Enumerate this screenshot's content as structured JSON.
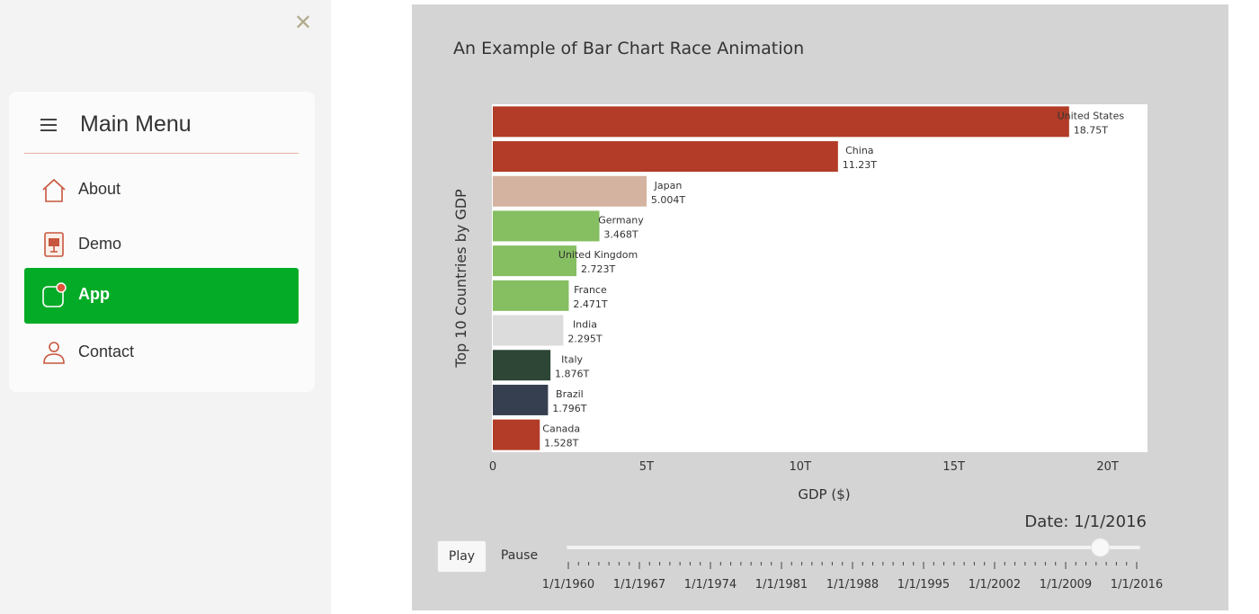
{
  "sidebar": {
    "close_icon": "close-icon",
    "title": "Main Menu",
    "items": [
      {
        "label": "About",
        "icon": "home-icon",
        "active": false
      },
      {
        "label": "Demo",
        "icon": "presentation-icon",
        "active": false
      },
      {
        "label": "App",
        "icon": "app-icon",
        "active": true
      },
      {
        "label": "Contact",
        "icon": "user-icon",
        "active": false
      }
    ]
  },
  "colors": {
    "accent_green": "#04ab27",
    "panel_bg": "#d3d4d3"
  },
  "main": {
    "title": "An Example of Bar Chart Race Animation",
    "controls": {
      "play_label": "Play",
      "pause_label": "Pause",
      "current_date": "Date: 1/1/2016",
      "slider_position": 0.933,
      "slider_ticks": [
        "1/1/1960",
        "1/1/1967",
        "1/1/1974",
        "1/1/1981",
        "1/1/1988",
        "1/1/1995",
        "1/1/2002",
        "1/1/2009",
        "1/1/2016"
      ]
    }
  },
  "chart_data": {
    "type": "bar",
    "orientation": "horizontal",
    "xlabel": "GDP ($)",
    "ylabel": "Top 10 Countries by GDP",
    "xlim": [
      0,
      21.3
    ],
    "x_ticks": [
      0,
      5,
      10,
      15,
      20
    ],
    "x_tick_labels": [
      "0",
      "5T",
      "10T",
      "15T",
      "20T"
    ],
    "categories": [
      "United States",
      "China",
      "Japan",
      "Germany",
      "United Kingdom",
      "France",
      "India",
      "Italy",
      "Brazil",
      "Canada"
    ],
    "values": [
      18.75,
      11.23,
      5.004,
      3.468,
      2.723,
      2.471,
      2.295,
      1.876,
      1.796,
      1.528
    ],
    "value_labels": [
      "18.75T",
      "11.23T",
      "5.004T",
      "3.468T",
      "2.723T",
      "2.471T",
      "2.295T",
      "1.876T",
      "1.796T",
      "1.528T"
    ],
    "colors": [
      "#b23c27",
      "#b23c27",
      "#d4b3a0",
      "#86be62",
      "#86be62",
      "#86be62",
      "#dcdcdc",
      "#2d4636",
      "#353f4f",
      "#b23c27"
    ],
    "grid": false
  }
}
